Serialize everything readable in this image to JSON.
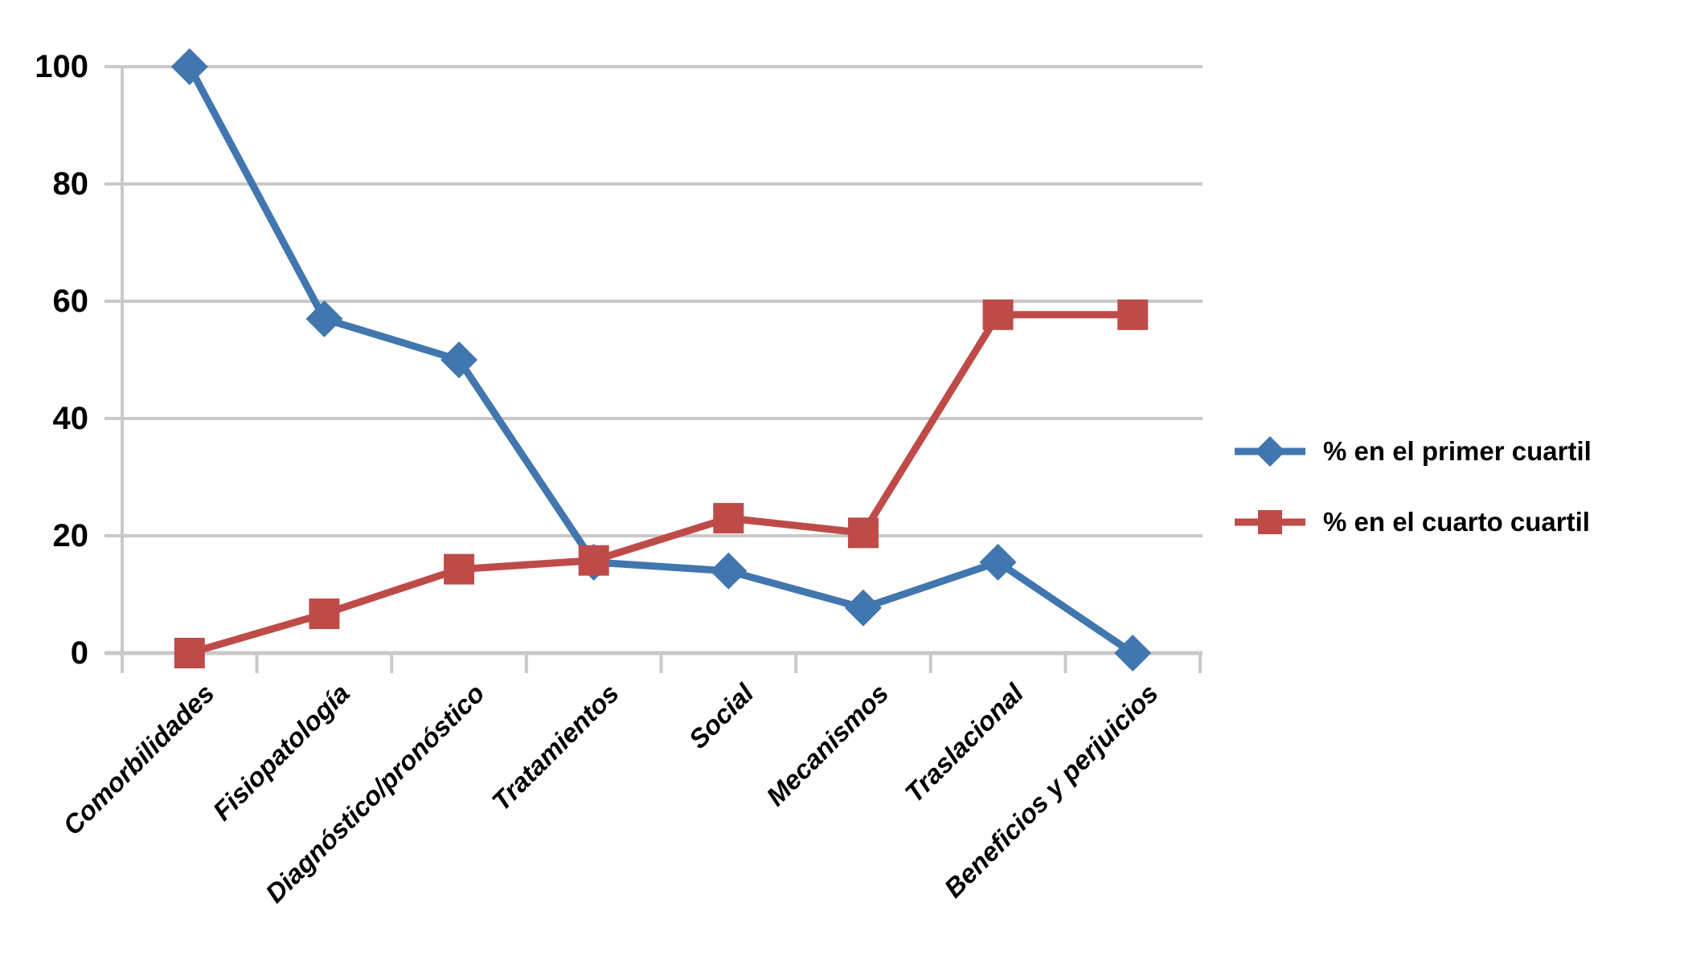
{
  "chart_data": {
    "type": "line",
    "title": "",
    "xlabel": "",
    "ylabel": "",
    "categories": [
      "Comorbilidades",
      "Fisiopatología",
      "Diagnóstico/pronóstico",
      "Tratamientos",
      "Social",
      "Mecanismos",
      "Traslacional",
      "Beneficios y perjuicios"
    ],
    "series": [
      {
        "name": "% en el primer cuartil",
        "marker": "diamond",
        "color": "#4176AE",
        "values": [
          100,
          57,
          50,
          15.5,
          14,
          7.7,
          15.5,
          0
        ]
      },
      {
        "name": "% en el cuarto cuartil",
        "marker": "square",
        "color": "#BE4B48",
        "values": [
          0,
          6.7,
          14.3,
          15.8,
          23,
          20.5,
          57.7,
          57.7
        ]
      }
    ],
    "y_ticks": [
      0,
      20,
      40,
      60,
      80,
      100
    ],
    "ylim": [
      0,
      100
    ],
    "grid": true,
    "legend_position": "right",
    "gridline_color": "#C9C9C9",
    "axis_color": "#C6C6C6",
    "text_color": "#000000"
  }
}
